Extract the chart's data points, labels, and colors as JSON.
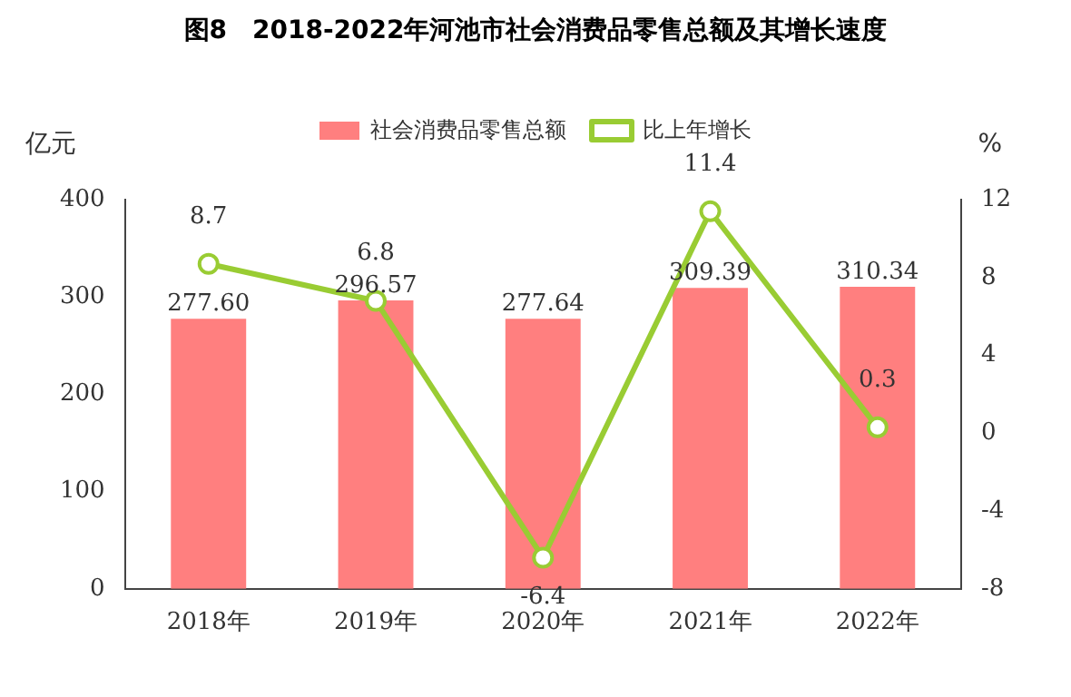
{
  "chart_data": {
    "type": "bar",
    "title": "图8　2018-2022年河池市社会消费品零售总额及其增长速度",
    "ylabel": "亿元",
    "y2label": "%",
    "categories": [
      "2018年",
      "2019年",
      "2020年",
      "2021年",
      "2022年"
    ],
    "series": [
      {
        "name": "社会消费品零售总额",
        "color": "#ff7f7f",
        "values": [
          277.6,
          296.57,
          277.64,
          309.39,
          310.34
        ],
        "value_labels": [
          "277.60",
          "296.57",
          "277.64",
          "309.39",
          "310.34"
        ]
      },
      {
        "name": "比上年增长",
        "type": "line",
        "axis": "y2",
        "color": "#99cc33",
        "values": [
          8.7,
          6.8,
          -6.4,
          11.4,
          0.3
        ],
        "value_labels": [
          "8.7",
          "6.8",
          "-6.4",
          "11.4",
          "0.3"
        ]
      }
    ],
    "ylim": [
      0,
      400
    ],
    "yticks": [
      0,
      100,
      200,
      300,
      400
    ],
    "y2lim": [
      -8,
      12
    ],
    "y2ticks": [
      -8,
      -4,
      0,
      4,
      8,
      12
    ],
    "grid": false,
    "legend": "top",
    "marker": "circle",
    "line_style": "solid"
  }
}
